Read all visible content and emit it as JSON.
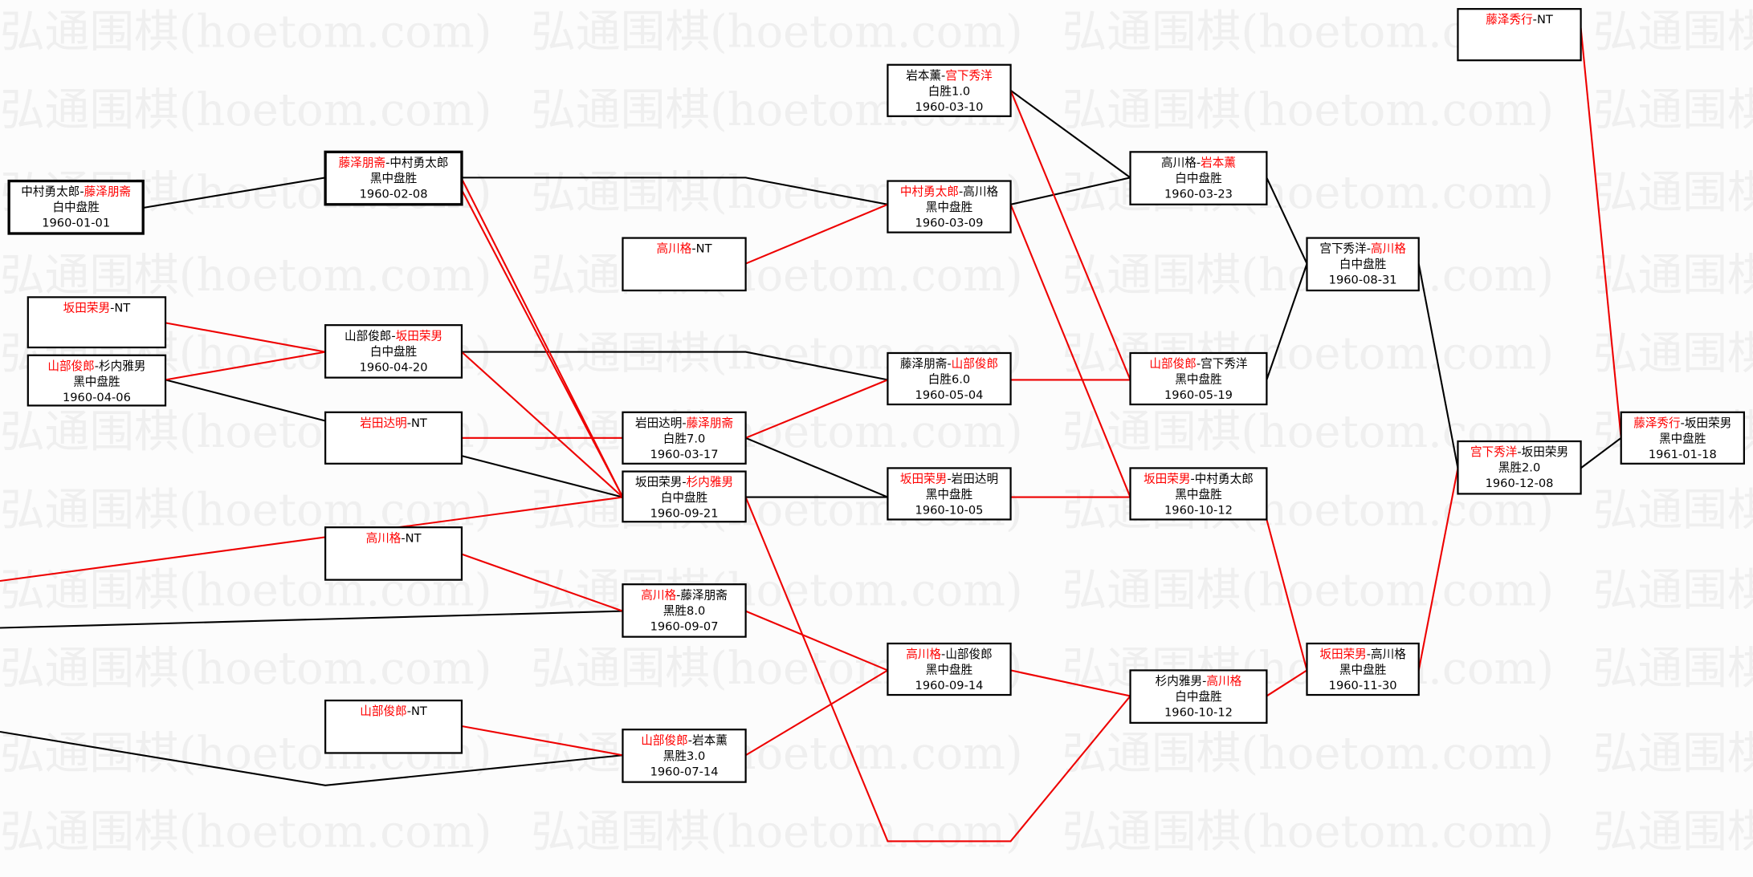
{
  "watermark": "弘通围棋(hoetom.com)",
  "colors": {
    "winner": "#ff0000",
    "loser": "#000000",
    "line_black": "#000000",
    "line_red": "#ee0000",
    "watermark": "#efefef"
  },
  "games": [
    {
      "p1": "中村勇太郎",
      "p2": "藤泽朋斋",
      "red": 2,
      "result": "白中盘胜",
      "date": "1960-01-01"
    },
    {
      "p1": "藤泽朋斋",
      "p2": "中村勇太郎",
      "red": 1,
      "result": "黑中盘胜",
      "date": "1960-02-08"
    },
    {
      "p1": "坂田荣男",
      "p2": "NT",
      "red": 1,
      "result": "",
      "date": ""
    },
    {
      "p1": "山部俊郎",
      "p2": "杉内雅男",
      "red": 1,
      "result": "黑中盘胜",
      "date": "1960-04-06"
    },
    {
      "p1": "山部俊郎",
      "p2": "坂田荣男",
      "red": 2,
      "result": "白中盘胜",
      "date": "1960-04-20"
    },
    {
      "p1": "岩田达明",
      "p2": "NT",
      "red": 1,
      "result": "",
      "date": ""
    },
    {
      "p1": "高川格",
      "p2": "NT",
      "red": 1,
      "result": "",
      "date": ""
    },
    {
      "p1": "山部俊郎",
      "p2": "NT",
      "red": 1,
      "result": "",
      "date": ""
    },
    {
      "p1": "高川格",
      "p2": "NT",
      "red": 1,
      "result": "",
      "date": ""
    },
    {
      "p1": "岩田达明",
      "p2": "藤泽朋斋",
      "red": 2,
      "result": "白胜7.0",
      "date": "1960-03-17"
    },
    {
      "p1": "坂田荣男",
      "p2": "杉内雅男",
      "red": 2,
      "result": "白中盘胜",
      "date": "1960-09-21"
    },
    {
      "p1": "高川格",
      "p2": "藤泽朋斋",
      "red": 1,
      "result": "黑胜8.0",
      "date": "1960-09-07"
    },
    {
      "p1": "山部俊郎",
      "p2": "岩本薰",
      "red": 1,
      "result": "黑胜3.0",
      "date": "1960-07-14"
    },
    {
      "p1": "岩本薰",
      "p2": "宫下秀洋",
      "red": 2,
      "result": "白胜1.0",
      "date": "1960-03-10"
    },
    {
      "p1": "中村勇太郎",
      "p2": "高川格",
      "red": 1,
      "result": "黑中盘胜",
      "date": "1960-03-09"
    },
    {
      "p1": "藤泽朋斋",
      "p2": "山部俊郎",
      "red": 2,
      "result": "白胜6.0",
      "date": "1960-05-04"
    },
    {
      "p1": "坂田荣男",
      "p2": "岩田达明",
      "red": 1,
      "result": "黑中盘胜",
      "date": "1960-10-05"
    },
    {
      "p1": "高川格",
      "p2": "山部俊郎",
      "red": 1,
      "result": "黑中盘胜",
      "date": "1960-09-14"
    },
    {
      "p1": "高川格",
      "p2": "岩本薰",
      "red": 2,
      "result": "白中盘胜",
      "date": "1960-03-23"
    },
    {
      "p1": "山部俊郎",
      "p2": "宫下秀洋",
      "red": 1,
      "result": "黑中盘胜",
      "date": "1960-05-19"
    },
    {
      "p1": "坂田荣男",
      "p2": "中村勇太郎",
      "red": 1,
      "result": "黑中盘胜",
      "date": "1960-10-12"
    },
    {
      "p1": "杉内雅男",
      "p2": "高川格",
      "red": 2,
      "result": "白中盘胜",
      "date": "1960-10-12"
    },
    {
      "p1": "宫下秀洋",
      "p2": "高川格",
      "red": 2,
      "result": "白中盘胜",
      "date": "1960-08-31"
    },
    {
      "p1": "坂田荣男",
      "p2": "高川格",
      "red": 1,
      "result": "黑中盘胜",
      "date": "1960-11-30"
    },
    {
      "p1": "宫下秀洋",
      "p2": "坂田荣男",
      "red": 1,
      "result": "黑胜2.0",
      "date": "1960-12-08"
    },
    {
      "p1": "藤泽秀行",
      "p2": "NT",
      "red": 1,
      "result": "",
      "date": ""
    },
    {
      "p1": "藤泽秀行",
      "p2": "坂田荣男",
      "red": 1,
      "result": "黑中盘胜",
      "date": "1961-01-18"
    }
  ]
}
